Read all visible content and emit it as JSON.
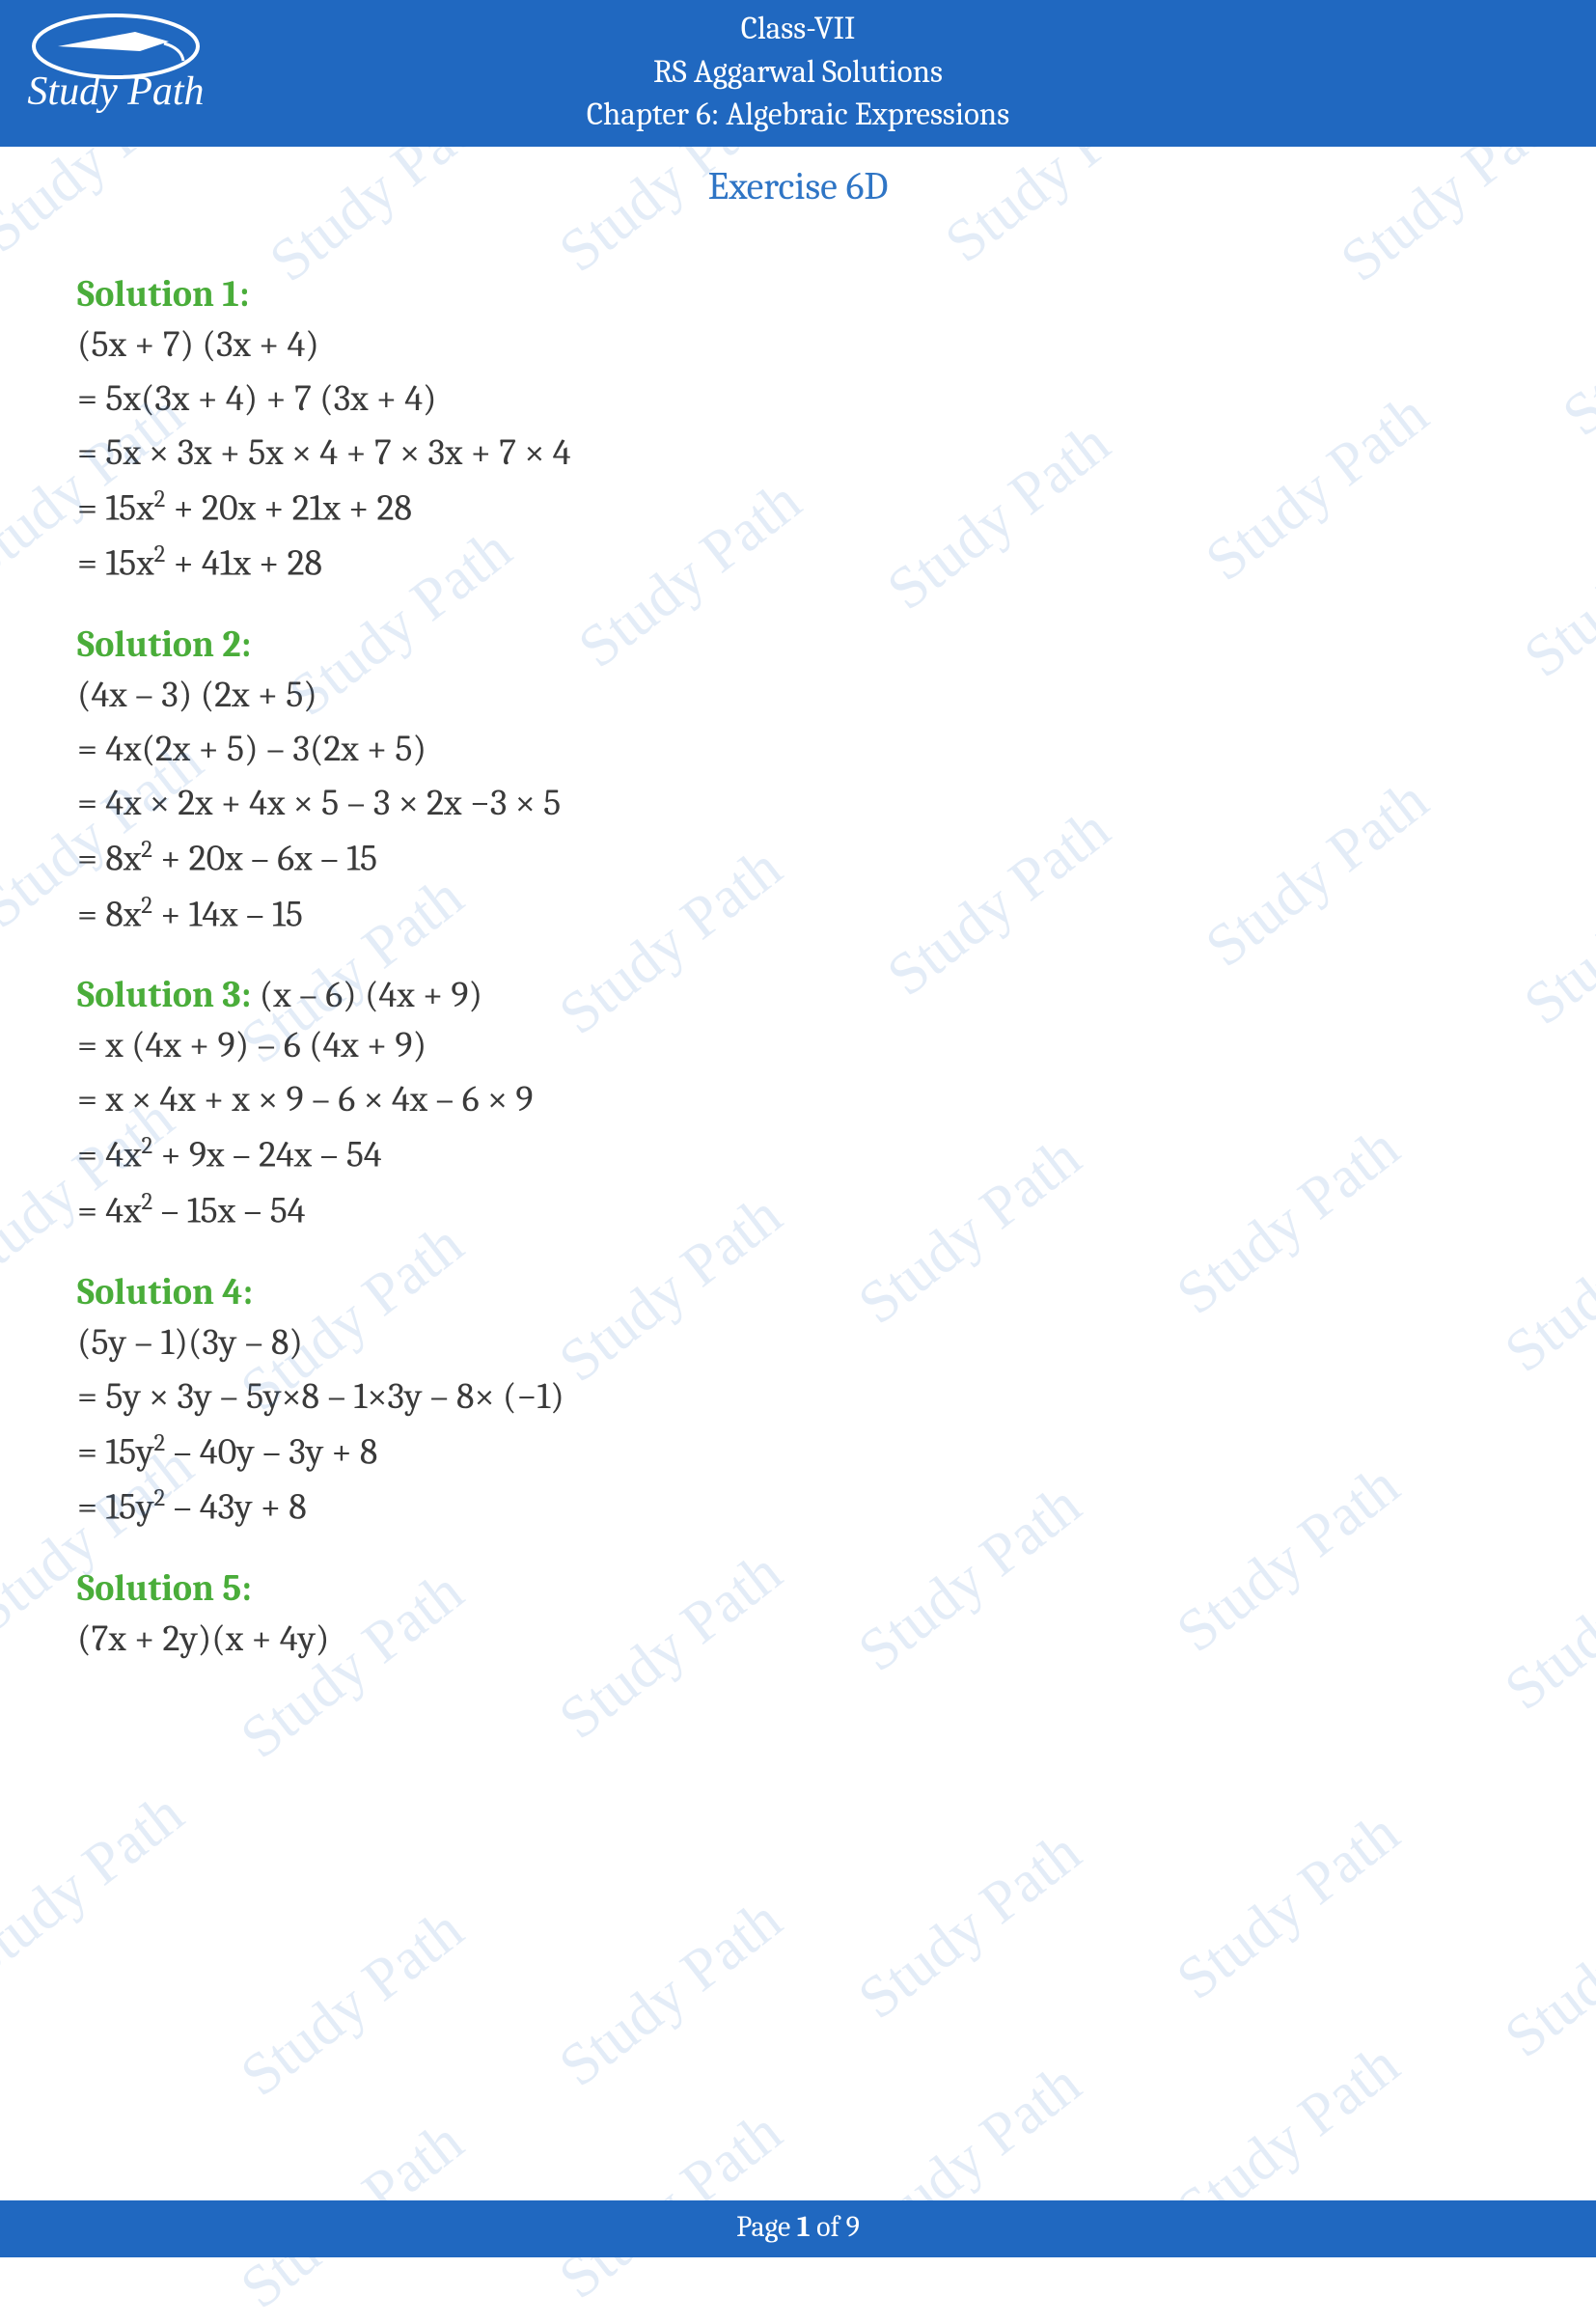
{
  "header": {
    "class": "Class-VII",
    "book": "RS Aggarwal Solutions",
    "chapter": "Chapter 6: Algebraic Expressions",
    "bg_color": "#2068c0",
    "text_color": "#ffffff",
    "logo_text": "Study Path"
  },
  "exercise": {
    "title": "Exercise 6D",
    "color": "#2f75c5",
    "fontsize": 40
  },
  "solution_title_color": "#4aad3a",
  "body_text_color": "#3a3a3a",
  "body_fontsize": 38,
  "watermark": {
    "text": "Study Path",
    "color": "#2f75c5",
    "opacity": 0.13,
    "rotation_deg": -38,
    "fontsize": 62
  },
  "solutions": [
    {
      "title": "Solution 1:",
      "inline": "",
      "lines": [
        "(5x + 7) (3x + 4)",
        "= 5x(3x + 4) + 7 (3x + 4)",
        "= 5x × 3x + 5x × 4 + 7 × 3x + 7 × 4",
        "= 15x² + 20x + 21x + 28",
        "= 15x² + 41x + 28"
      ]
    },
    {
      "title": "Solution 2:",
      "inline": "",
      "lines": [
        "(4x – 3) (2x + 5)",
        "= 4x(2x + 5) – 3(2x + 5)",
        "= 4x × 2x + 4x × 5 – 3 × 2x −3 × 5",
        "= 8x² + 20x – 6x – 15",
        "= 8x² + 14x – 15"
      ]
    },
    {
      "title": "Solution 3:",
      "inline": "(x – 6) (4x + 9)",
      "lines": [
        "= x (4x + 9) – 6 (4x + 9)",
        "= x × 4x + x × 9 – 6 × 4x – 6 × 9",
        "= 4x² + 9x – 24x – 54",
        "= 4x² – 15x – 54"
      ]
    },
    {
      "title": "Solution 4:",
      "inline": "",
      "lines": [
        "(5y – 1)(3y – 8)",
        "= 5y × 3y – 5y×8 – 1×3y – 8× (−1)",
        "= 15y² – 40y – 3y + 8",
        "= 15y² – 43y + 8"
      ]
    },
    {
      "title": "Solution 5:",
      "inline": "",
      "lines": [
        "(7x + 2y)(x + 4y)"
      ]
    }
  ],
  "footer": {
    "prefix": "Page ",
    "current": "1",
    "of": " of ",
    "total": "9",
    "bg_color": "#2068c0",
    "text_color": "#ffffff"
  },
  "wm_positions": [
    [
      -40,
      130
    ],
    [
      260,
      160
    ],
    [
      560,
      150
    ],
    [
      960,
      140
    ],
    [
      1370,
      160
    ],
    [
      1600,
      320
    ],
    [
      -60,
      470
    ],
    [
      280,
      610
    ],
    [
      580,
      560
    ],
    [
      900,
      500
    ],
    [
      1230,
      470
    ],
    [
      1560,
      570
    ],
    [
      -40,
      830
    ],
    [
      230,
      970
    ],
    [
      560,
      940
    ],
    [
      900,
      900
    ],
    [
      1230,
      870
    ],
    [
      1560,
      930
    ],
    [
      -70,
      1200
    ],
    [
      230,
      1330
    ],
    [
      560,
      1300
    ],
    [
      870,
      1240
    ],
    [
      1200,
      1230
    ],
    [
      1540,
      1290
    ],
    [
      -50,
      1560
    ],
    [
      230,
      1690
    ],
    [
      560,
      1670
    ],
    [
      870,
      1600
    ],
    [
      1200,
      1580
    ],
    [
      1540,
      1640
    ],
    [
      -60,
      1920
    ],
    [
      230,
      2040
    ],
    [
      560,
      2030
    ],
    [
      870,
      1960
    ],
    [
      1200,
      1940
    ],
    [
      1540,
      2000
    ],
    [
      230,
      2260
    ],
    [
      560,
      2250
    ],
    [
      870,
      2200
    ],
    [
      1200,
      2180
    ]
  ]
}
